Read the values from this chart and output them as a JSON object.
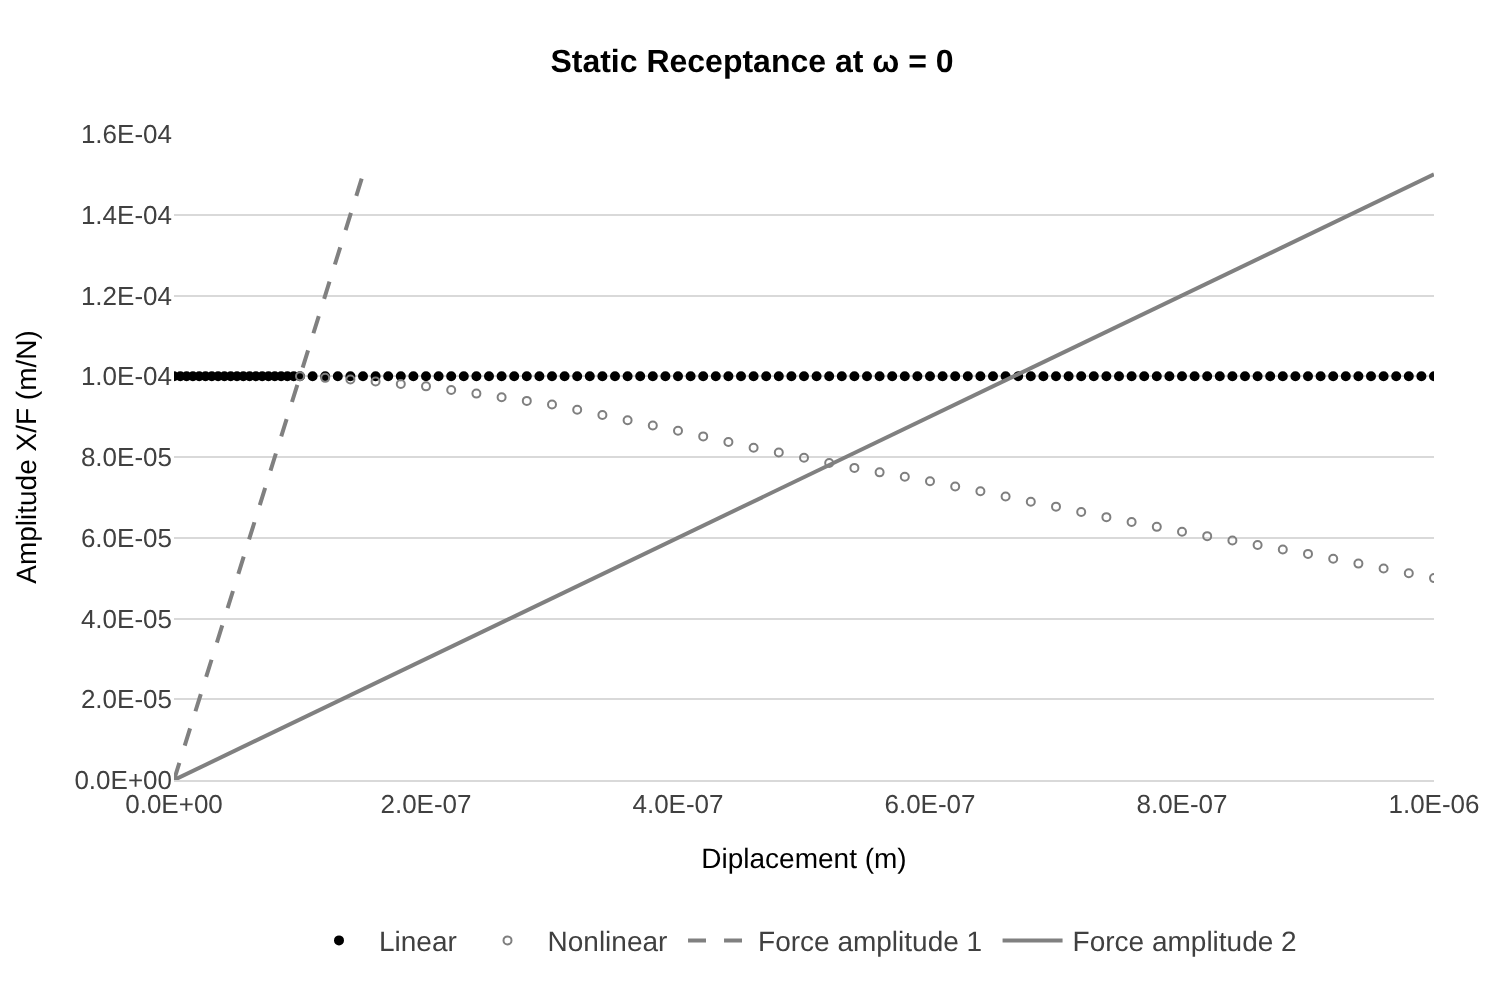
{
  "chart_data": {
    "type": "scatter",
    "title": "Static Receptance at ω = 0",
    "xlabel": "Diplacement (m)",
    "ylabel": "Amplitude X/F (m/N)",
    "xlim": [
      0,
      1e-06
    ],
    "ylim": [
      0,
      0.00016
    ],
    "xticks": [
      {
        "value": 0,
        "label": "0.0E+00"
      },
      {
        "value": 2e-07,
        "label": "2.0E-07"
      },
      {
        "value": 4e-07,
        "label": "4.0E-07"
      },
      {
        "value": 6e-07,
        "label": "6.0E-07"
      },
      {
        "value": 8e-07,
        "label": "8.0E-07"
      },
      {
        "value": 1e-06,
        "label": "1.0E-06"
      }
    ],
    "yticks": [
      {
        "value": 0,
        "label": "0.0E+00"
      },
      {
        "value": 2e-05,
        "label": "2.0E-05"
      },
      {
        "value": 4e-05,
        "label": "4.0E-05"
      },
      {
        "value": 6e-05,
        "label": "6.0E-05"
      },
      {
        "value": 8e-05,
        "label": "8.0E-05"
      },
      {
        "value": 0.0001,
        "label": "1.0E-04"
      },
      {
        "value": 0.00012,
        "label": "1.2E-04"
      },
      {
        "value": 0.00014,
        "label": "1.4E-04"
      },
      {
        "value": 0.00016,
        "label": "1.6E-04"
      }
    ],
    "grid": "y",
    "legend": "bottom",
    "series": [
      {
        "name": "Linear",
        "marker": "circle",
        "color": "#000000",
        "x": [
          0,
          5e-09,
          1e-08,
          1.5e-08,
          2e-08,
          2.5e-08,
          3e-08,
          3.5e-08,
          4e-08,
          4.5e-08,
          5e-08,
          5.5e-08,
          6e-08,
          6.5e-08,
          7e-08,
          7.5e-08,
          8e-08,
          8.5e-08,
          9e-08,
          9.5e-08,
          1e-07,
          1.1e-07,
          1.2e-07,
          1.3e-07,
          1.4e-07,
          1.5e-07,
          1.6e-07,
          1.7e-07,
          1.8e-07,
          1.9e-07,
          2e-07,
          2.1e-07,
          2.2e-07,
          2.3e-07,
          2.4e-07,
          2.5e-07,
          2.6e-07,
          2.7e-07,
          2.8e-07,
          2.9e-07,
          3e-07,
          3.1e-07,
          3.2e-07,
          3.3e-07,
          3.4e-07,
          3.5e-07,
          3.6e-07,
          3.7e-07,
          3.8e-07,
          3.9e-07,
          4e-07,
          4.1e-07,
          4.2e-07,
          4.3e-07,
          4.4e-07,
          4.5e-07,
          4.6e-07,
          4.7e-07,
          4.8e-07,
          4.9e-07,
          5e-07,
          5.1e-07,
          5.2e-07,
          5.3e-07,
          5.4e-07,
          5.5e-07,
          5.6e-07,
          5.7e-07,
          5.8e-07,
          5.9e-07,
          6e-07,
          6.1e-07,
          6.2e-07,
          6.3e-07,
          6.4e-07,
          6.5e-07,
          6.6e-07,
          6.7e-07,
          6.8e-07,
          6.9e-07,
          7e-07,
          7.1e-07,
          7.2e-07,
          7.3e-07,
          7.4e-07,
          7.5e-07,
          7.6e-07,
          7.7e-07,
          7.8e-07,
          7.9e-07,
          8e-07,
          8.1e-07,
          8.2e-07,
          8.3e-07,
          8.4e-07,
          8.5e-07,
          8.6e-07,
          8.7e-07,
          8.8e-07,
          8.9e-07,
          9e-07,
          9.1e-07,
          9.2e-07,
          9.3e-07,
          9.4e-07,
          9.5e-07,
          9.6e-07,
          9.7e-07,
          9.8e-07,
          9.9e-07,
          1e-06
        ],
        "values": [
          0.0001,
          0.0001,
          0.0001,
          0.0001,
          0.0001,
          0.0001,
          0.0001,
          0.0001,
          0.0001,
          0.0001,
          0.0001,
          0.0001,
          0.0001,
          0.0001,
          0.0001,
          0.0001,
          0.0001,
          0.0001,
          0.0001,
          0.0001,
          0.0001,
          0.0001,
          0.0001,
          0.0001,
          0.0001,
          0.0001,
          0.0001,
          0.0001,
          0.0001,
          0.0001,
          0.0001,
          0.0001,
          0.0001,
          0.0001,
          0.0001,
          0.0001,
          0.0001,
          0.0001,
          0.0001,
          0.0001,
          0.0001,
          0.0001,
          0.0001,
          0.0001,
          0.0001,
          0.0001,
          0.0001,
          0.0001,
          0.0001,
          0.0001,
          0.0001,
          0.0001,
          0.0001,
          0.0001,
          0.0001,
          0.0001,
          0.0001,
          0.0001,
          0.0001,
          0.0001,
          0.0001,
          0.0001,
          0.0001,
          0.0001,
          0.0001,
          0.0001,
          0.0001,
          0.0001,
          0.0001,
          0.0001,
          0.0001,
          0.0001,
          0.0001,
          0.0001,
          0.0001,
          0.0001,
          0.0001,
          0.0001,
          0.0001,
          0.0001,
          0.0001,
          0.0001,
          0.0001,
          0.0001,
          0.0001,
          0.0001,
          0.0001,
          0.0001,
          0.0001,
          0.0001,
          0.0001,
          0.0001,
          0.0001,
          0.0001,
          0.0001,
          0.0001,
          0.0001,
          0.0001,
          0.0001,
          0.0001,
          0.0001,
          0.0001,
          0.0001,
          0.0001,
          0.0001,
          0.0001,
          0.0001,
          0.0001,
          0.0001,
          0.0001,
          0.0001
        ]
      },
      {
        "name": "Nonlinear",
        "marker": "circle-open",
        "color": "#7f7f7f",
        "x": [
          1e-07,
          1.2e-07,
          1.4e-07,
          1.6e-07,
          1.8e-07,
          2e-07,
          2.2e-07,
          2.4e-07,
          2.6e-07,
          2.8e-07,
          3e-07,
          3.2e-07,
          3.4e-07,
          3.6e-07,
          3.8e-07,
          4e-07,
          4.2e-07,
          4.4e-07,
          4.6e-07,
          4.8e-07,
          5e-07,
          5.2e-07,
          5.4e-07,
          5.6e-07,
          5.8e-07,
          6e-07,
          6.2e-07,
          6.4e-07,
          6.6e-07,
          6.8e-07,
          7e-07,
          7.2e-07,
          7.4e-07,
          7.6e-07,
          7.8e-07,
          8e-07,
          8.2e-07,
          8.4e-07,
          8.6e-07,
          8.8e-07,
          9e-07,
          9.2e-07,
          9.4e-07,
          9.6e-07,
          9.8e-07,
          1e-06
        ],
        "values": [
          0.0001,
          9.96e-05,
          9.92e-05,
          9.87e-05,
          9.81e-05,
          9.75e-05,
          9.66e-05,
          9.57e-05,
          9.48e-05,
          9.39e-05,
          9.3e-05,
          9.17e-05,
          9.04e-05,
          8.91e-05,
          8.78e-05,
          8.65e-05,
          8.51e-05,
          8.37e-05,
          8.23e-05,
          8.11e-05,
          7.98e-05,
          7.85e-05,
          7.73e-05,
          7.62e-05,
          7.51e-05,
          7.4e-05,
          7.27e-05,
          7.15e-05,
          7.02e-05,
          6.89e-05,
          6.77e-05,
          6.64e-05,
          6.51e-05,
          6.39e-05,
          6.27e-05,
          6.15e-05,
          6.04e-05,
          5.93e-05,
          5.82e-05,
          5.71e-05,
          5.6e-05,
          5.48e-05,
          5.36e-05,
          5.24e-05,
          5.12e-05,
          5e-05
        ]
      },
      {
        "name": "Force amplitude 1",
        "type": "line",
        "line_style": "dashed",
        "marker": "none",
        "color": "#808080",
        "x": [
          0,
          1.5e-07
        ],
        "values": [
          0,
          0.00015
        ]
      },
      {
        "name": "Force amplitude 2",
        "type": "line",
        "line_style": "solid",
        "marker": "none",
        "color": "#808080",
        "x": [
          0,
          1e-06
        ],
        "values": [
          0,
          0.00015
        ]
      }
    ]
  }
}
